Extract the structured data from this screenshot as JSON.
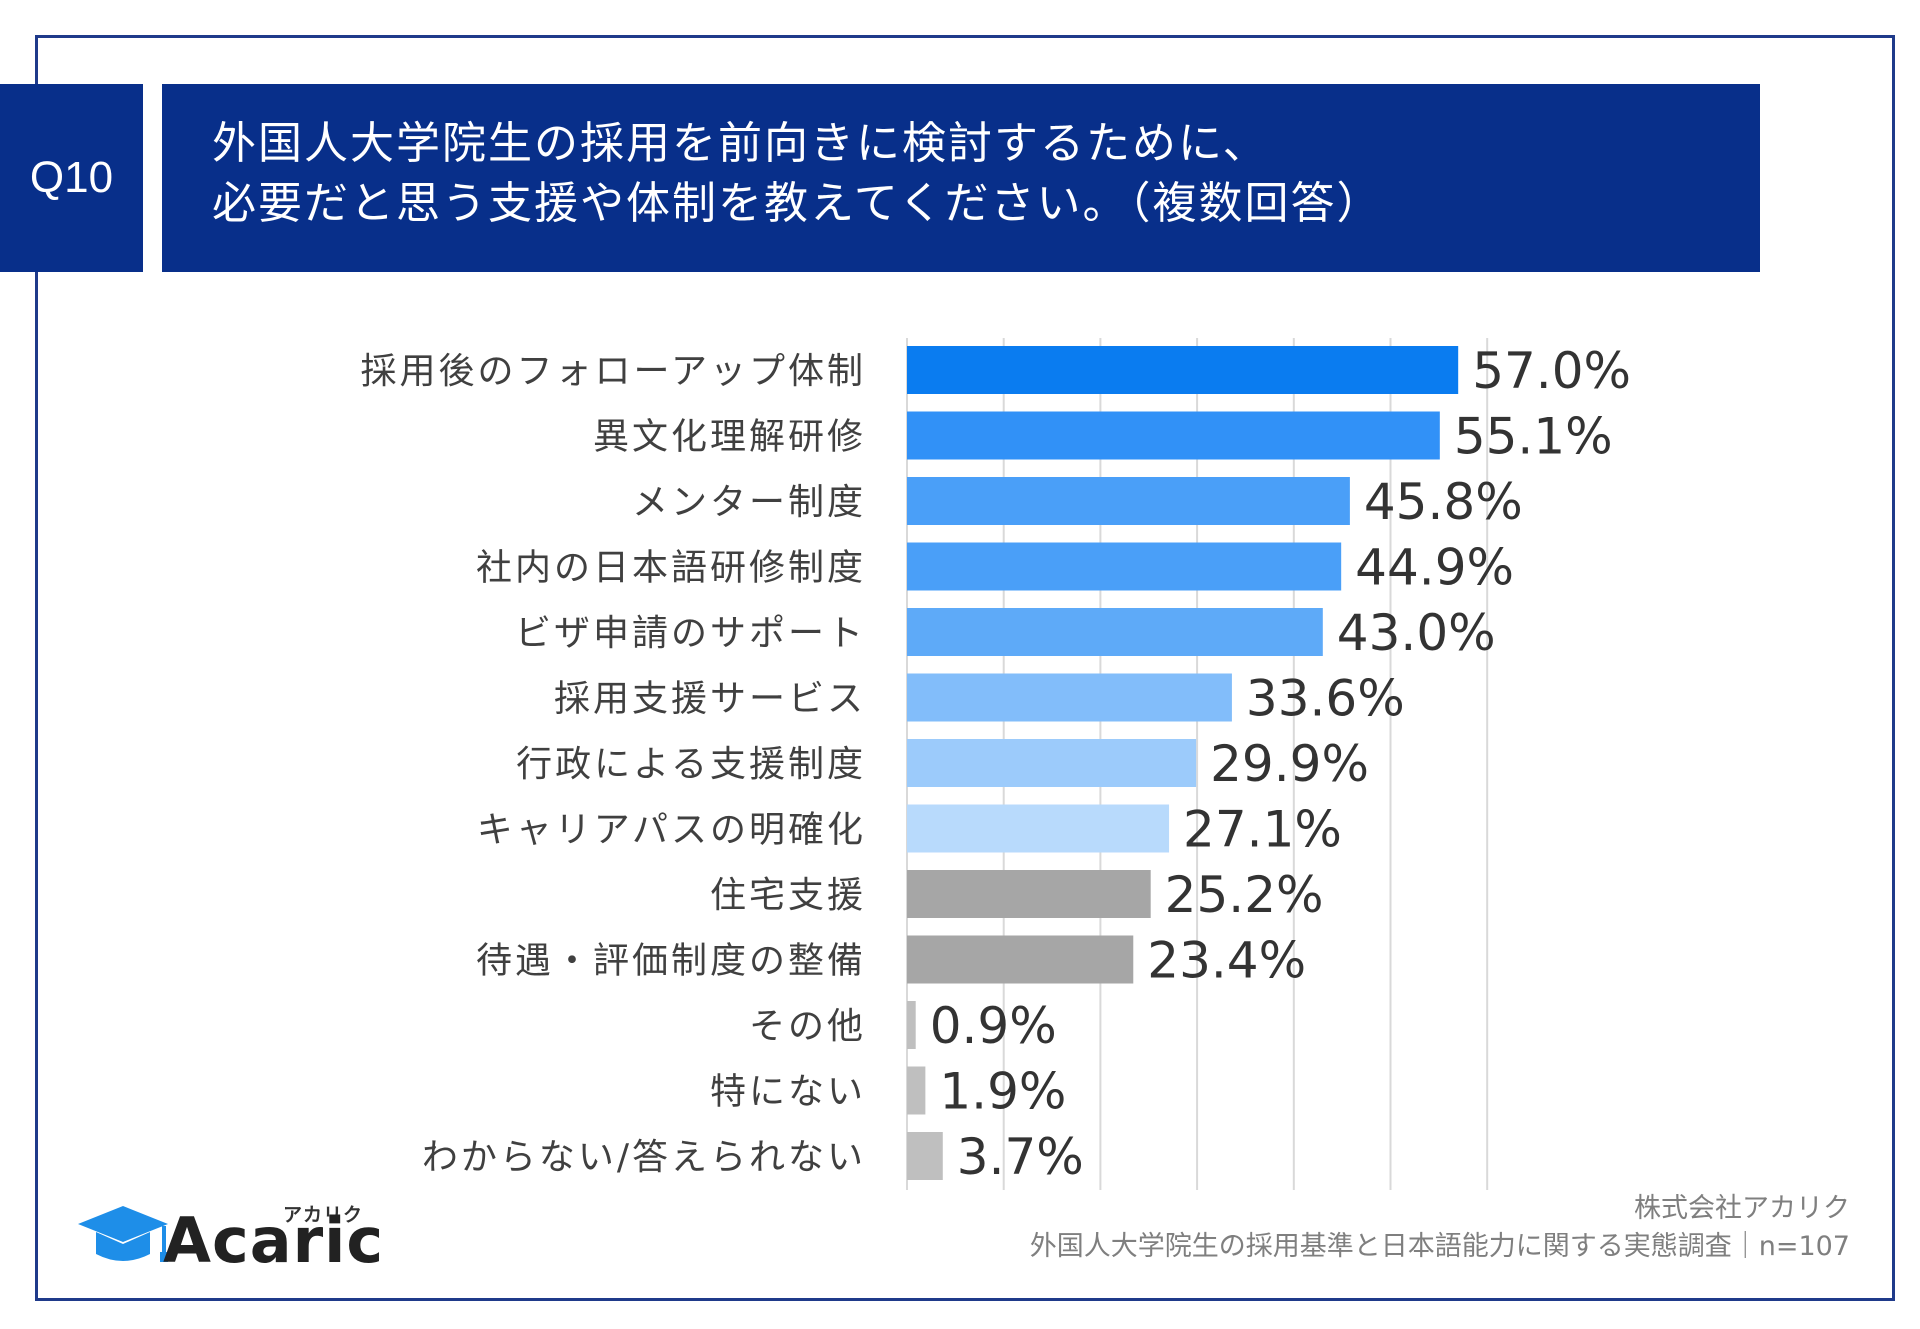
{
  "header": {
    "question_label": "Q10",
    "title_line1": "外国人大学院生の採用を前向きに検討するために、",
    "title_line2": "必要だと思う支援や体制を教えてください。（複数回答）"
  },
  "chart_data": {
    "type": "bar",
    "orientation": "horizontal",
    "categories": [
      "採用後のフォローアップ体制",
      "異文化理解研修",
      "メンター制度",
      "社内の日本語研修制度",
      "ビザ申請のサポート",
      "採用支援サービス",
      "行政による支援制度",
      "キャリアパスの明確化",
      "住宅支援",
      "待遇・評価制度の整備",
      "その他",
      "特にない",
      "わからない/答えられない"
    ],
    "values": [
      57.0,
      55.1,
      45.8,
      44.9,
      43.0,
      33.6,
      29.9,
      27.1,
      25.2,
      23.4,
      0.9,
      1.9,
      3.7
    ],
    "value_labels": [
      "57.0%",
      "55.1%",
      "45.8%",
      "44.9%",
      "43.0%",
      "33.6%",
      "29.9%",
      "27.1%",
      "25.2%",
      "23.4%",
      "0.9%",
      "1.9%",
      "3.7%"
    ],
    "colors": [
      "#0a7cf0",
      "#3191f7",
      "#4a9ff8",
      "#4a9ff8",
      "#5eaaf8",
      "#82bdfa",
      "#9ccbfb",
      "#b8dafc",
      "#a6a6a6",
      "#a6a6a6",
      "#bfbfbf",
      "#bfbfbf",
      "#bfbfbf"
    ],
    "xlim": [
      0,
      60
    ],
    "grid": true
  },
  "footer": {
    "company": "株式会社アカリク",
    "survey": "外国人大学院生の採用基準と日本語能力に関する実態調査｜n=107"
  },
  "logo": {
    "small_text": "アカリク",
    "word": "Acaric",
    "brand_color": "#1e8ee8"
  }
}
